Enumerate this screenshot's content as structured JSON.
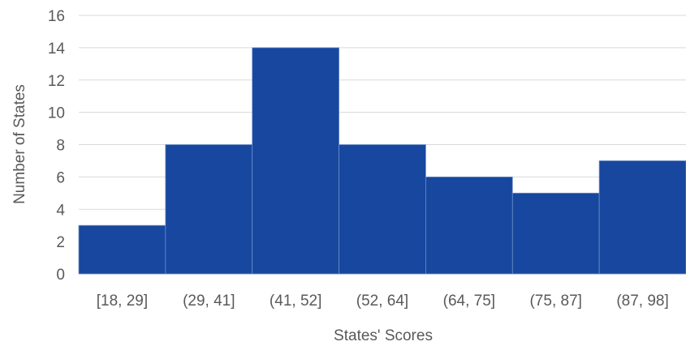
{
  "chart_data": {
    "type": "bar",
    "title": "",
    "xlabel": "States' Scores",
    "ylabel": "Number of States",
    "categories": [
      "[18, 29]",
      "(29, 41]",
      "(41, 52]",
      "(52, 64]",
      "(64, 75]",
      "(75, 87]",
      "(87, 98]"
    ],
    "values": [
      3,
      8,
      14,
      8,
      6,
      5,
      7
    ],
    "ylim": [
      0,
      16
    ],
    "yticks": [
      0,
      2,
      4,
      6,
      8,
      10,
      12,
      14,
      16
    ],
    "ytick_labels": [
      "0",
      "2",
      "4",
      "6",
      "8",
      "10",
      "12",
      "14",
      "16"
    ],
    "grid": true,
    "legend": "none",
    "bar_color": "#17479e",
    "bar_edge_color": "#6f8fc8",
    "grid_color": "#d9d9d9",
    "text_color": "#595959"
  }
}
